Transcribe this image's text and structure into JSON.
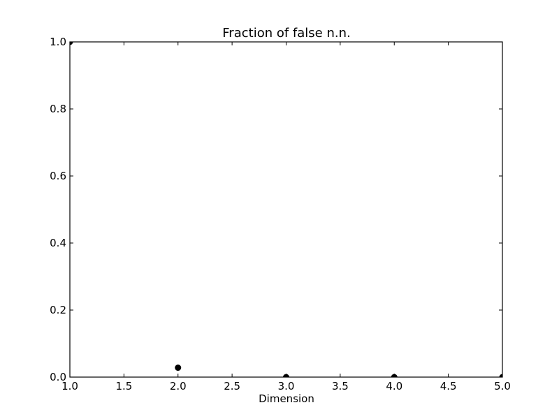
{
  "chart_data": {
    "type": "scatter",
    "title": "Fraction of false n.n.",
    "xlabel": "Dimension",
    "ylabel": "",
    "xlim": [
      1.0,
      5.0
    ],
    "ylim": [
      0.0,
      1.0
    ],
    "x_ticks": [
      "1.0",
      "1.5",
      "2.0",
      "2.5",
      "3.0",
      "3.5",
      "4.0",
      "4.5",
      "5.0"
    ],
    "y_ticks": [
      "0.0",
      "0.2",
      "0.4",
      "0.6",
      "0.8",
      "1.0"
    ],
    "grid": false,
    "series": [
      {
        "color": "#000000",
        "marker": "circle",
        "x": [
          1,
          2,
          3,
          4,
          5
        ],
        "y": [
          1.0,
          0.028,
          0.0,
          0.0,
          0.0
        ]
      }
    ]
  }
}
